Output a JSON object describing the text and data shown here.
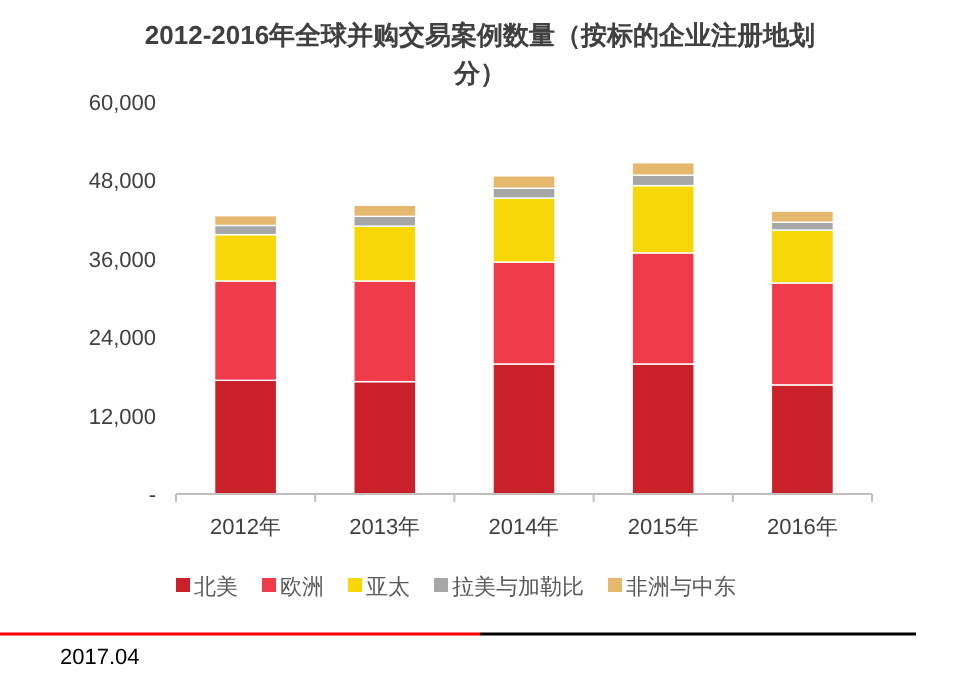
{
  "chart_data": {
    "type": "bar",
    "stacked": true,
    "title": "2012-2016年全球并购交易案例数量（按标的企业注册地划分）",
    "categories": [
      "2012年",
      "2013年",
      "2014年",
      "2015年",
      "2016年"
    ],
    "series": [
      {
        "name": "北美",
        "color": "#c9202a",
        "values": [
          17400,
          17200,
          19900,
          19900,
          16700
        ]
      },
      {
        "name": "欧洲",
        "color": "#ef3b4a",
        "values": [
          15200,
          15400,
          15600,
          17000,
          15600
        ]
      },
      {
        "name": "亚太",
        "color": "#f7d708",
        "values": [
          7100,
          8400,
          9800,
          10300,
          8100
        ]
      },
      {
        "name": "拉美与加勒比",
        "color": "#a6a6a6",
        "values": [
          1400,
          1500,
          1500,
          1600,
          1200
        ]
      },
      {
        "name": "非洲与中东",
        "color": "#e6b86e",
        "values": [
          1500,
          1700,
          1900,
          1900,
          1700
        ]
      }
    ],
    "ylim": [
      0,
      60000
    ],
    "yticks": [
      {
        "value": 0,
        "label": "-"
      },
      {
        "value": 12000,
        "label": "12,000"
      },
      {
        "value": 24000,
        "label": "24,000"
      },
      {
        "value": 36000,
        "label": "36,000"
      },
      {
        "value": 48000,
        "label": "48,000"
      },
      {
        "value": 60000,
        "label": "60,000"
      }
    ],
    "grid": false,
    "legend": "bottom",
    "annotations": [
      "2017.04"
    ]
  }
}
